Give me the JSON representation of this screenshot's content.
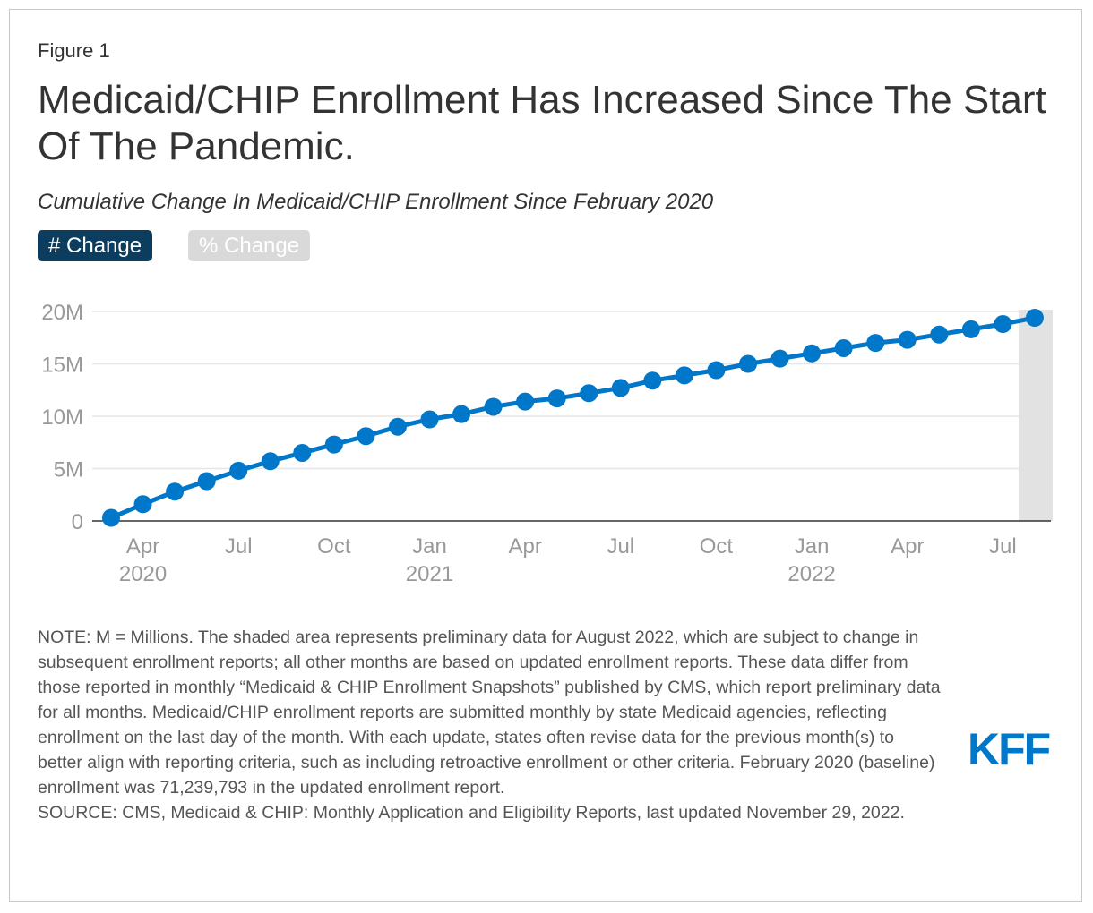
{
  "figure_label": "Figure 1",
  "title": "Medicaid/CHIP Enrollment Has Increased Since The Start Of The Pandemic.",
  "subtitle": "Cumulative Change In Medicaid/CHIP Enrollment Since February 2020",
  "toggles": [
    {
      "label": "# Change",
      "active": true
    },
    {
      "label": "% Change",
      "active": false
    }
  ],
  "colors": {
    "series": "#0077c8",
    "active_button": "#0c3d5e",
    "inactive_button": "#d9d9d9",
    "shade": "#e2e2e2",
    "logo": "#0077c8"
  },
  "chart_data": {
    "type": "line",
    "ylim": [
      0,
      20
    ],
    "yticks": [
      {
        "value": 0,
        "label": "0"
      },
      {
        "value": 5,
        "label": "5M"
      },
      {
        "value": 10,
        "label": "10M"
      },
      {
        "value": 15,
        "label": "15M"
      },
      {
        "value": 20,
        "label": "20M"
      }
    ],
    "xticks": [
      {
        "date": "2020-04",
        "label": "Apr",
        "year": "2020"
      },
      {
        "date": "2020-07",
        "label": "Jul",
        "year": ""
      },
      {
        "date": "2020-10",
        "label": "Oct",
        "year": ""
      },
      {
        "date": "2021-01",
        "label": "Jan",
        "year": "2021"
      },
      {
        "date": "2021-04",
        "label": "Apr",
        "year": ""
      },
      {
        "date": "2021-07",
        "label": "Jul",
        "year": ""
      },
      {
        "date": "2021-10",
        "label": "Oct",
        "year": ""
      },
      {
        "date": "2022-01",
        "label": "Jan",
        "year": "2022"
      },
      {
        "date": "2022-04",
        "label": "Apr",
        "year": ""
      },
      {
        "date": "2022-07",
        "label": "Jul",
        "year": ""
      }
    ],
    "x": [
      "2020-03",
      "2020-04",
      "2020-05",
      "2020-06",
      "2020-07",
      "2020-08",
      "2020-09",
      "2020-10",
      "2020-11",
      "2020-12",
      "2021-01",
      "2021-02",
      "2021-03",
      "2021-04",
      "2021-05",
      "2021-06",
      "2021-07",
      "2021-08",
      "2021-09",
      "2021-10",
      "2021-11",
      "2021-12",
      "2022-01",
      "2022-02",
      "2022-03",
      "2022-04",
      "2022-05",
      "2022-06",
      "2022-07",
      "2022-08"
    ],
    "values": [
      0.3,
      1.6,
      2.8,
      3.8,
      4.8,
      5.7,
      6.5,
      7.3,
      8.1,
      9.0,
      9.7,
      10.2,
      10.9,
      11.4,
      11.7,
      12.2,
      12.7,
      13.4,
      13.9,
      14.4,
      15.0,
      15.5,
      16.0,
      16.5,
      17.0,
      17.3,
      17.8,
      18.3,
      18.8,
      19.4
    ],
    "shaded_region": "2022-08",
    "grid": true
  },
  "note": "NOTE: M = Millions. The shaded area represents preliminary data for August 2022, which are subject to change in subsequent enrollment reports; all other months are based on updated enrollment reports. These data differ from those reported in monthly “Medicaid & CHIP Enrollment Snapshots” published by CMS, which report preliminary data for all months. Medicaid/CHIP enrollment reports are submitted monthly by state Medicaid agencies, reflecting enrollment on the last day of the month. With each update, states often revise data for the previous month(s) to better align with reporting criteria, such as including retroactive enrollment or other criteria. February 2020 (baseline) enrollment was 71,239,793 in the updated enrollment report.",
  "source": "SOURCE: CMS, Medicaid & CHIP: Monthly Application and Eligibility Reports, last updated November 29, 2022.",
  "logo_text": "KFF"
}
